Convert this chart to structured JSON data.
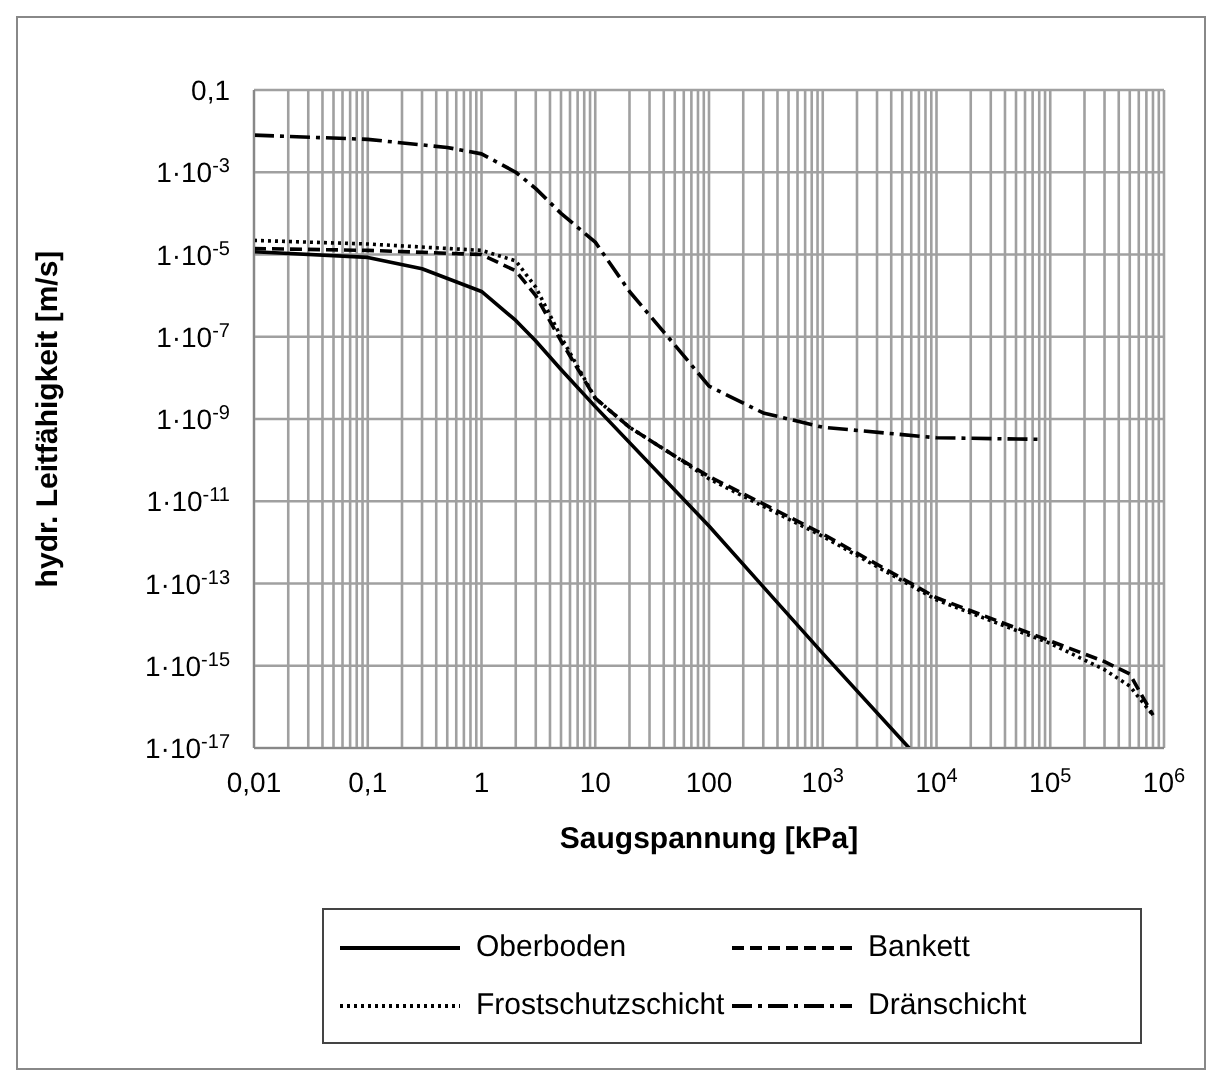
{
  "chart_data": {
    "type": "line",
    "xlabel": "Saugspannung [kPa]",
    "ylabel": "hydr. Leitfähigkeit [m/s]",
    "log": "xy",
    "grid": true,
    "legend": "bottom",
    "xlim": [
      0.01,
      1000000
    ],
    "ylim": [
      1e-17,
      0.1
    ],
    "xticks": [
      {
        "value": 0.01,
        "label": "0,01"
      },
      {
        "value": 0.02,
        "label": null
      },
      {
        "value": 0.03,
        "label": null
      },
      {
        "value": 0.04,
        "label": null
      },
      {
        "value": 0.05,
        "label": null
      },
      {
        "value": 0.06,
        "label": null
      },
      {
        "value": 0.07,
        "label": null
      },
      {
        "value": 0.08,
        "label": null
      },
      {
        "value": 0.09,
        "label": null
      },
      {
        "value": 0.1,
        "label": "0,1"
      },
      {
        "value": 0.2,
        "label": null
      },
      {
        "value": 0.3,
        "label": null
      },
      {
        "value": 0.4,
        "label": null
      },
      {
        "value": 0.5,
        "label": null
      },
      {
        "value": 0.6,
        "label": null
      },
      {
        "value": 0.7,
        "label": null
      },
      {
        "value": 0.8,
        "label": null
      },
      {
        "value": 0.9,
        "label": null
      },
      1,
      {
        "value": 2,
        "label": null
      },
      {
        "value": 3,
        "label": null
      },
      {
        "value": 4,
        "label": null
      },
      {
        "value": 5,
        "label": null
      },
      {
        "value": 6,
        "label": null
      },
      {
        "value": 7,
        "label": null
      },
      {
        "value": 8,
        "label": null
      },
      {
        "value": 9,
        "label": null
      },
      10,
      {
        "value": 20,
        "label": null
      },
      {
        "value": 30,
        "label": null
      },
      {
        "value": 40,
        "label": null
      },
      {
        "value": 50,
        "label": null
      },
      {
        "value": 60,
        "label": null
      },
      {
        "value": 70,
        "label": null
      },
      {
        "value": 80,
        "label": null
      },
      {
        "value": 90,
        "label": null
      },
      100,
      {
        "value": 200,
        "label": null
      },
      {
        "value": 300,
        "label": null
      },
      {
        "value": 400,
        "label": null
      },
      {
        "value": 500,
        "label": null
      },
      {
        "value": 600,
        "label": null
      },
      {
        "value": 700,
        "label": null
      },
      {
        "value": 800,
        "label": null
      },
      {
        "value": 900,
        "label": null
      },
      {
        "value": 1000,
        "label": "10$^{3}$"
      },
      {
        "value": 2000,
        "label": null
      },
      {
        "value": 3000,
        "label": null
      },
      {
        "value": 4000,
        "label": null
      },
      {
        "value": 5000,
        "label": null
      },
      {
        "value": 6000,
        "label": null
      },
      {
        "value": 7000,
        "label": null
      },
      {
        "value": 8000,
        "label": null
      },
      {
        "value": 9000,
        "label": null
      },
      {
        "value": 10000,
        "label": "10$^{4}$"
      },
      {
        "value": 20000,
        "label": null
      },
      {
        "value": 30000,
        "label": null
      },
      {
        "value": 40000,
        "label": null
      },
      {
        "value": 50000,
        "label": null
      },
      {
        "value": 60000,
        "label": null
      },
      {
        "value": 70000,
        "label": null
      },
      {
        "value": 80000,
        "label": null
      },
      {
        "value": 90000,
        "label": null
      },
      {
        "value": 100000,
        "label": "10$^{5}$"
      },
      {
        "value": 200000,
        "label": null
      },
      {
        "value": 300000,
        "label": null
      },
      {
        "value": 400000,
        "label": null
      },
      {
        "value": 500000,
        "label": null
      },
      {
        "value": 600000,
        "label": null
      },
      {
        "value": 700000,
        "label": null
      },
      {
        "value": 800000,
        "label": null
      },
      {
        "value": 900000,
        "label": null
      },
      {
        "value": 1000000,
        "label": "10$^{6}$"
      }
    ],
    "yticks": [
      {
        "value": 1e-17,
        "label": "1·10$^{-17}$"
      },
      {
        "value": 1e-15,
        "label": "1·10$^{-15}$"
      },
      {
        "value": 1e-13,
        "label": "1·10$^{-13}$"
      },
      {
        "value": 1e-11,
        "label": "1·10$^{-11}$"
      },
      {
        "value": 1e-09,
        "label": "1·10$^{-9}$"
      },
      {
        "value": 1e-07,
        "label": "1·10$^{-7}$"
      },
      {
        "value": 1e-05,
        "label": "1·10$^{-5}$"
      },
      {
        "value": 0.001,
        "label": "1·10$^{-3}$"
      },
      {
        "value": 0.1,
        "label": "0,1"
      }
    ],
    "series": [
      {
        "name": "Oberboden",
        "color": "#000000",
        "line_style": "solid",
        "x": [
          0.01,
          0.1,
          0.3,
          1,
          2,
          3,
          5,
          10,
          100,
          1000,
          5750
        ],
        "values": [
          1.17e-05,
          8.5e-06,
          4.5e-06,
          1.26e-06,
          2.5e-07,
          7.9e-08,
          1.6e-08,
          2e-09,
          2.5e-12,
          2e-15,
          1e-17
        ]
      },
      {
        "name": "Bankett",
        "color": "#000000",
        "line_style": "dashed",
        "x": [
          0.01,
          0.1,
          1,
          2,
          3,
          5,
          10,
          20,
          50,
          100,
          1000,
          10000,
          100000,
          300000,
          500000,
          800000
        ],
        "values": [
          1.4e-05,
          1.26e-05,
          1e-05,
          4e-06,
          1e-06,
          7.9e-08,
          3.2e-09,
          6.3e-10,
          1.26e-10,
          4e-11,
          1.6e-12,
          4.5e-14,
          4e-15,
          1.26e-15,
          6.3e-16,
          6.3e-17
        ]
      },
      {
        "name": "Frostschutzschicht",
        "color": "#000000",
        "line_style": "dotted",
        "x": [
          0.01,
          0.1,
          1,
          2,
          3,
          5,
          10,
          20,
          50,
          100,
          1000,
          10000,
          100000,
          300000,
          500000,
          800000
        ],
        "values": [
          2.2e-05,
          1.8e-05,
          1.26e-05,
          7e-06,
          1.6e-06,
          1e-07,
          3.2e-09,
          6.3e-10,
          1.26e-10,
          3.5e-11,
          1.4e-12,
          4e-14,
          3.5e-15,
          8e-16,
          3.2e-16,
          6.3e-17
        ]
      },
      {
        "name": "Dränschicht",
        "color": "#000000",
        "line_style": "dashdot",
        "x": [
          0.01,
          0.1,
          0.5,
          1,
          2,
          3,
          5,
          10,
          20,
          50,
          100,
          300,
          1000,
          10000,
          80000
        ],
        "values": [
          0.008,
          0.0063,
          0.004,
          0.0028,
          0.001,
          0.0004,
          0.0001,
          2e-05,
          1.26e-06,
          6.3e-08,
          6.3e-09,
          1.4e-09,
          6.3e-10,
          3.5e-10,
          3.2e-10
        ]
      }
    ]
  }
}
